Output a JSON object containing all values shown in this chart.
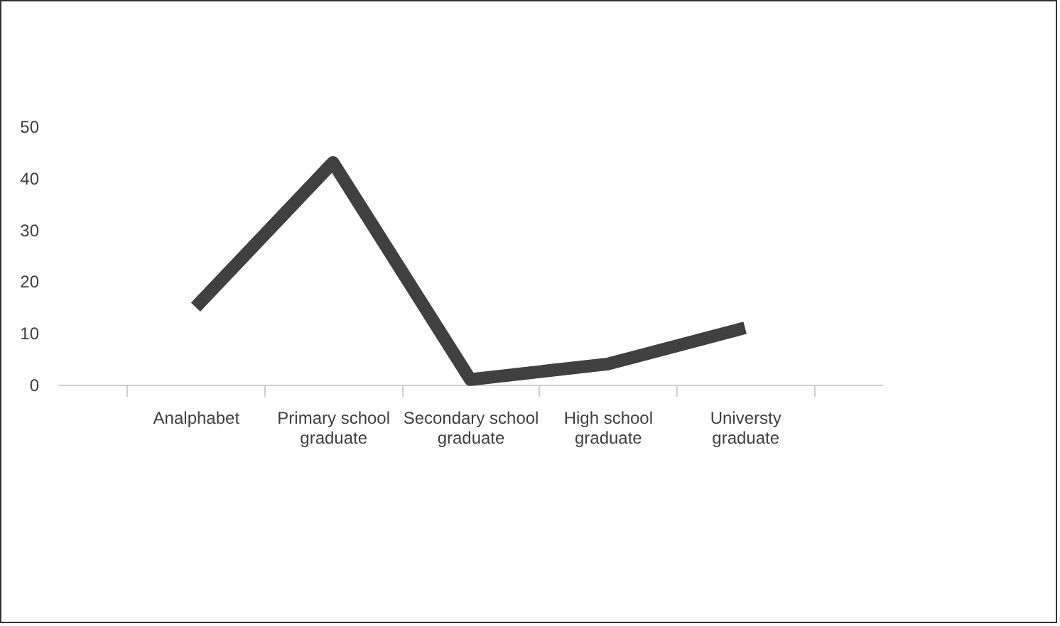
{
  "chart_data": {
    "type": "line",
    "categories": [
      "Analphabet",
      "Primary school graduate",
      "Secondary school graduate",
      "High school graduate",
      "Universty graduate"
    ],
    "series": [
      {
        "color": "#404040",
        "values": [
          15,
          43,
          1,
          4,
          11
        ]
      }
    ],
    "ylim": [
      0,
      50
    ],
    "yticks": [
      0,
      10,
      20,
      30,
      40,
      50
    ],
    "grid": false,
    "legend": false
  }
}
